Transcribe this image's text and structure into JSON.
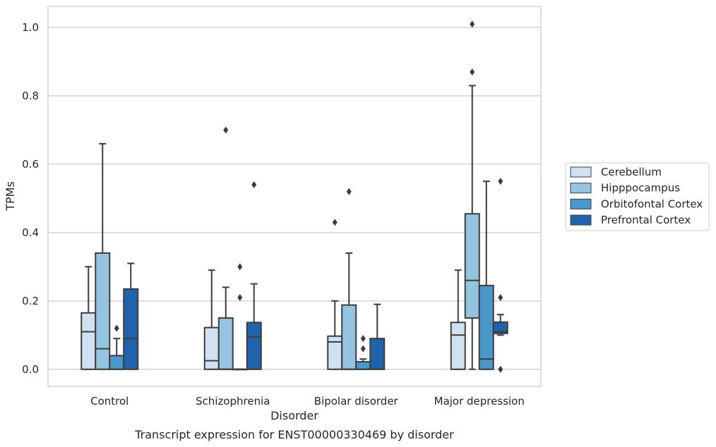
{
  "chart_data": {
    "type": "box",
    "title": "",
    "caption": "Transcript expression for ENST00000330469 by disorder",
    "xlabel": "Disorder",
    "ylabel": "TPMs",
    "ylim": [
      -0.05,
      1.062
    ],
    "yticks": [
      0.0,
      0.2,
      0.4,
      0.6,
      0.8,
      1.0
    ],
    "ytick_labels": [
      "0.0",
      "0.2",
      "0.4",
      "0.6",
      "0.8",
      "1.0"
    ],
    "grid": "horizontal",
    "legend_position": "right",
    "categories": [
      "Control",
      "Schizophrenia",
      "Bipolar disorder",
      "Major depression"
    ],
    "series": [
      {
        "name": "Cerebellum",
        "color": "#d0e1f2",
        "boxes": [
          {
            "whislo": 0.0,
            "q1": 0.0,
            "med": 0.11,
            "q3": 0.165,
            "whishi": 0.3,
            "fliers": []
          },
          {
            "whislo": 0.0,
            "q1": 0.0,
            "med": 0.025,
            "q3": 0.122,
            "whishi": 0.29,
            "fliers": []
          },
          {
            "whislo": 0.0,
            "q1": 0.0,
            "med": 0.08,
            "q3": 0.097,
            "whishi": 0.2,
            "fliers": [
              0.43
            ]
          },
          {
            "whislo": 0.0,
            "q1": 0.0,
            "med": 0.1,
            "q3": 0.137,
            "whishi": 0.29,
            "fliers": []
          }
        ]
      },
      {
        "name": "Hipppocampus",
        "color": "#94c4df",
        "boxes": [
          {
            "whislo": 0.0,
            "q1": 0.0,
            "med": 0.06,
            "q3": 0.34,
            "whishi": 0.66,
            "fliers": []
          },
          {
            "whislo": 0.0,
            "q1": 0.0,
            "med": 0.0,
            "q3": 0.15,
            "whishi": 0.24,
            "fliers": [
              0.7
            ]
          },
          {
            "whislo": 0.0,
            "q1": 0.0,
            "med": 0.0,
            "q3": 0.188,
            "whishi": 0.34,
            "fliers": [
              0.52
            ]
          },
          {
            "whislo": 0.0,
            "q1": 0.15,
            "med": 0.26,
            "q3": 0.455,
            "whishi": 0.83,
            "fliers": [
              0.87,
              1.01
            ]
          }
        ]
      },
      {
        "name": "Orbitofontal Cortex",
        "color": "#4a98c9",
        "boxes": [
          {
            "whislo": 0.0,
            "q1": 0.0,
            "med": 0.0,
            "q3": 0.04,
            "whishi": 0.09,
            "fliers": [
              0.12
            ]
          },
          {
            "whislo": 0.0,
            "q1": 0.0,
            "med": 0.0,
            "q3": 0.0,
            "whishi": 0.0,
            "fliers": [
              0.21,
              0.3
            ]
          },
          {
            "whislo": 0.0,
            "q1": 0.0,
            "med": 0.0,
            "q3": 0.022,
            "whishi": 0.03,
            "fliers": [
              0.06,
              0.09
            ]
          },
          {
            "whislo": 0.0,
            "q1": 0.0,
            "med": 0.03,
            "q3": 0.245,
            "whishi": 0.55,
            "fliers": []
          }
        ]
      },
      {
        "name": "Prefrontal Cortex",
        "color": "#2163aa",
        "boxes": [
          {
            "whislo": 0.0,
            "q1": 0.0,
            "med": 0.09,
            "q3": 0.235,
            "whishi": 0.31,
            "fliers": []
          },
          {
            "whislo": 0.0,
            "q1": 0.0,
            "med": 0.095,
            "q3": 0.137,
            "whishi": 0.25,
            "fliers": [
              0.54
            ]
          },
          {
            "whislo": 0.0,
            "q1": 0.0,
            "med": 0.0,
            "q3": 0.09,
            "whishi": 0.19,
            "fliers": []
          },
          {
            "whislo": 0.1,
            "q1": 0.105,
            "med": 0.11,
            "q3": 0.138,
            "whishi": 0.16,
            "fliers": [
              0.0,
              0.21,
              0.55
            ]
          }
        ]
      }
    ]
  }
}
